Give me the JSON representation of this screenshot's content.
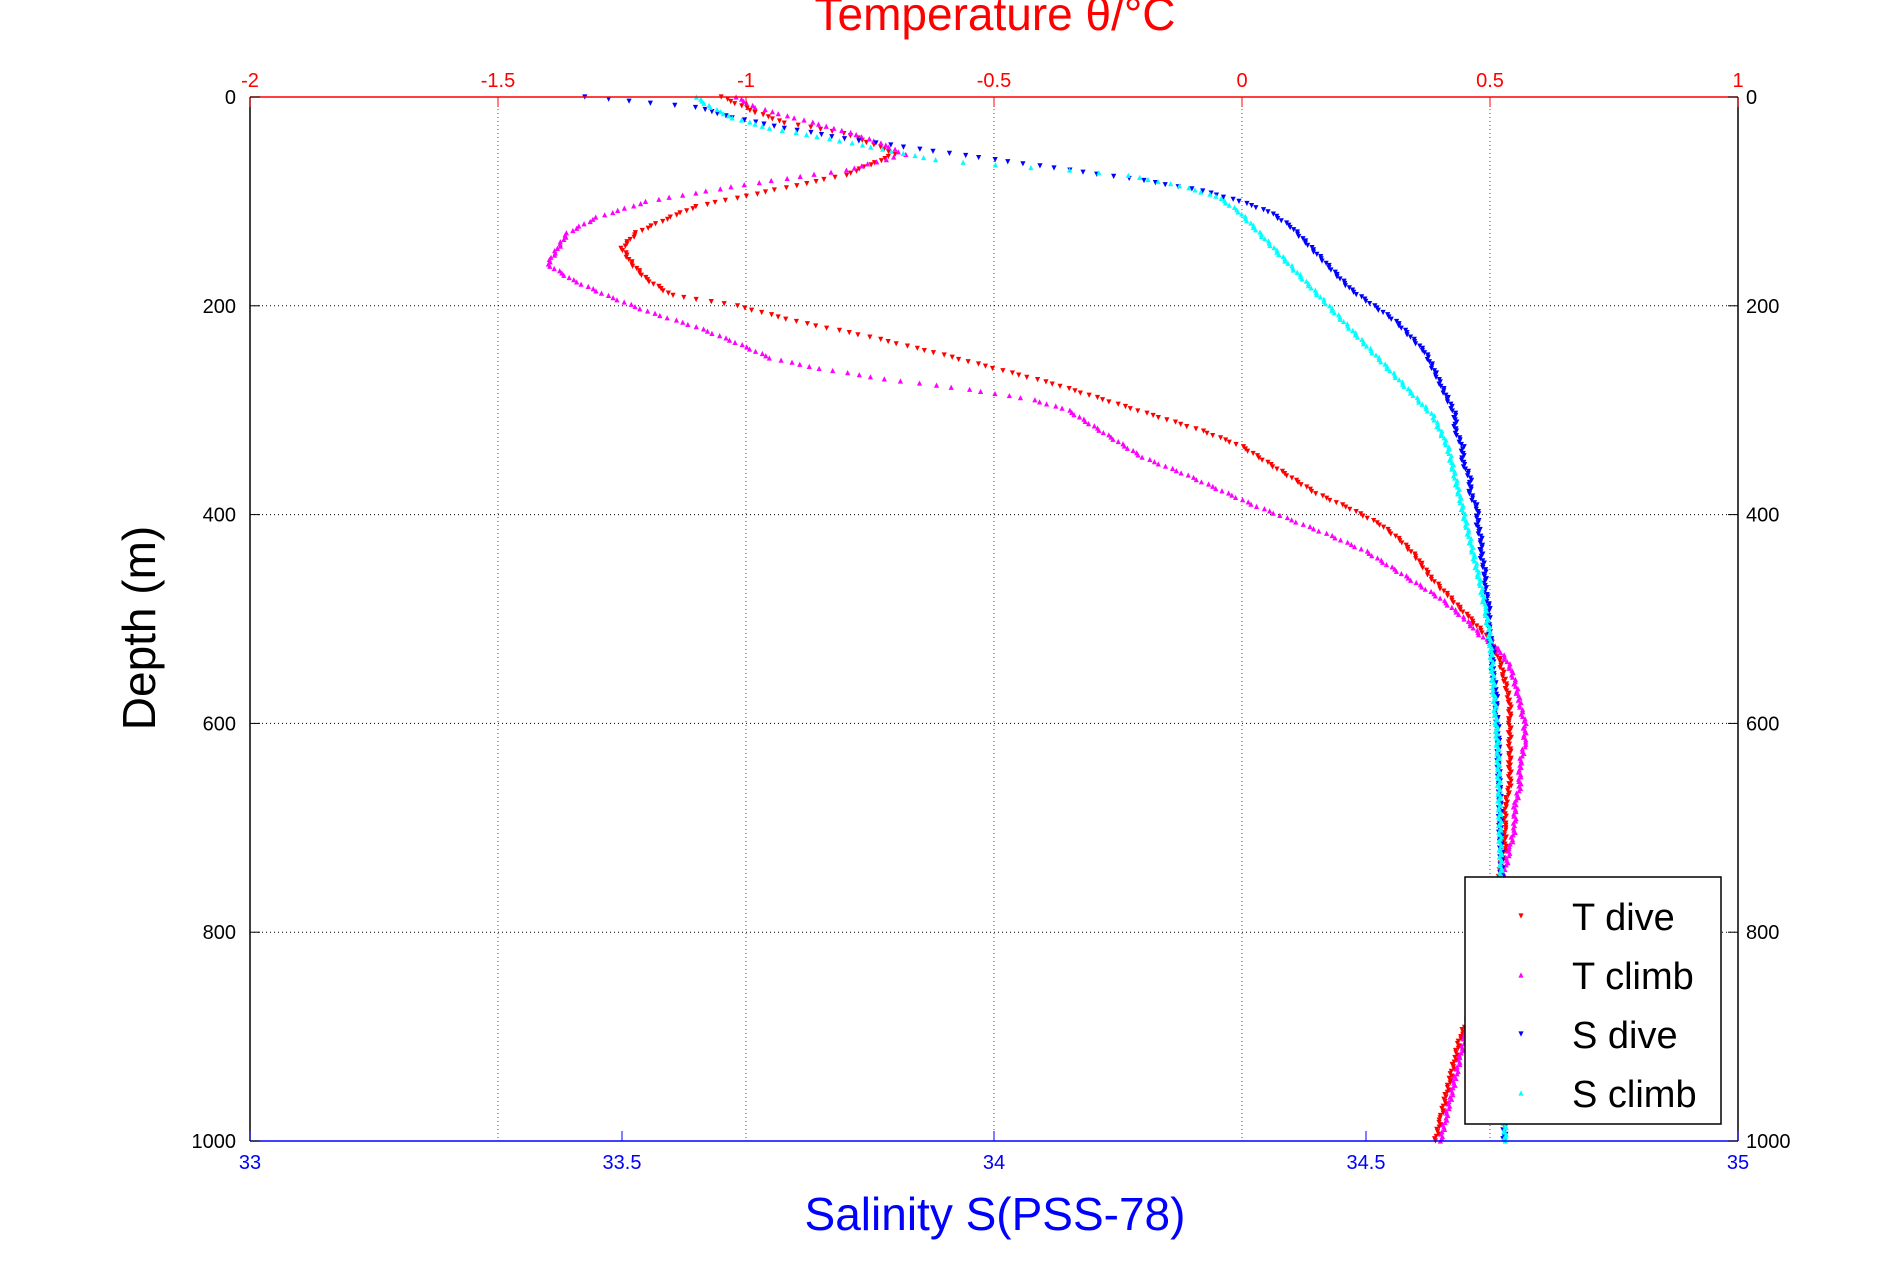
{
  "chart_data": {
    "type": "scatter",
    "title": "Temperature θ/°C",
    "xlabel": "Salinity S(PSS-78)",
    "ylabel": "Depth (m)",
    "top_axis": {
      "label": "Temperature θ/°C",
      "range": [
        -2,
        1
      ],
      "ticks": [
        "-2",
        "-1.5",
        "-1",
        "-0.5",
        "0",
        "0.5",
        "1"
      ],
      "color": "#ff0000"
    },
    "bottom_axis": {
      "label": "Salinity S(PSS-78)",
      "range": [
        33,
        35
      ],
      "ticks": [
        "33",
        "33.5",
        "34",
        "34.5",
        "35"
      ],
      "color": "#0000ff"
    },
    "y_axis": {
      "range": [
        0,
        1000
      ],
      "reversed": true,
      "ticks": [
        "0",
        "200",
        "400",
        "600",
        "800",
        "1000"
      ]
    },
    "grid": true,
    "legend": {
      "placement": "bottom-right"
    },
    "series": [
      {
        "name": "T dive",
        "axis": "top",
        "color": "#ff0000",
        "marker": "triangle-down",
        "points": [
          [
            -1.05,
            0
          ],
          [
            -0.98,
            15
          ],
          [
            -0.92,
            25
          ],
          [
            -0.8,
            35
          ],
          [
            -0.72,
            50
          ],
          [
            -0.7,
            55
          ],
          [
            -0.75,
            65
          ],
          [
            -0.8,
            75
          ],
          [
            -0.9,
            85
          ],
          [
            -1.0,
            95
          ],
          [
            -1.1,
            105
          ],
          [
            -1.15,
            115
          ],
          [
            -1.22,
            130
          ],
          [
            -1.25,
            145
          ],
          [
            -1.23,
            160
          ],
          [
            -1.2,
            175
          ],
          [
            -1.15,
            190
          ],
          [
            -1.02,
            200
          ],
          [
            -0.9,
            215
          ],
          [
            -0.75,
            230
          ],
          [
            -0.62,
            245
          ],
          [
            -0.5,
            260
          ],
          [
            -0.38,
            275
          ],
          [
            -0.28,
            290
          ],
          [
            -0.18,
            305
          ],
          [
            -0.08,
            320
          ],
          [
            0.0,
            335
          ],
          [
            0.05,
            350
          ],
          [
            0.1,
            365
          ],
          [
            0.15,
            380
          ],
          [
            0.22,
            395
          ],
          [
            0.28,
            410
          ],
          [
            0.32,
            425
          ],
          [
            0.35,
            440
          ],
          [
            0.38,
            460
          ],
          [
            0.42,
            480
          ],
          [
            0.46,
            500
          ],
          [
            0.5,
            520
          ],
          [
            0.52,
            540
          ],
          [
            0.53,
            560
          ],
          [
            0.54,
            580
          ],
          [
            0.54,
            600
          ],
          [
            0.54,
            620
          ],
          [
            0.54,
            640
          ],
          [
            0.54,
            660
          ],
          [
            0.53,
            680
          ],
          [
            0.53,
            700
          ],
          [
            0.53,
            720
          ],
          [
            0.52,
            740
          ],
          [
            0.52,
            760
          ],
          [
            0.51,
            780
          ],
          [
            0.5,
            800
          ],
          [
            0.49,
            820
          ],
          [
            0.48,
            840
          ],
          [
            0.47,
            860
          ],
          [
            0.46,
            880
          ],
          [
            0.44,
            900
          ],
          [
            0.43,
            920
          ],
          [
            0.42,
            940
          ],
          [
            0.41,
            960
          ],
          [
            0.4,
            980
          ],
          [
            0.39,
            1000
          ]
        ]
      },
      {
        "name": "T climb",
        "axis": "top",
        "color": "#ff00ff",
        "marker": "triangle-up",
        "points": [
          [
            -1.02,
            0
          ],
          [
            -0.98,
            10
          ],
          [
            -0.9,
            20
          ],
          [
            -0.82,
            30
          ],
          [
            -0.75,
            40
          ],
          [
            -0.7,
            50
          ],
          [
            -0.68,
            55
          ],
          [
            -0.72,
            60
          ],
          [
            -0.8,
            70
          ],
          [
            -0.95,
            80
          ],
          [
            -1.08,
            90
          ],
          [
            -1.2,
            100
          ],
          [
            -1.3,
            115
          ],
          [
            -1.36,
            130
          ],
          [
            -1.38,
            145
          ],
          [
            -1.4,
            160
          ],
          [
            -1.35,
            175
          ],
          [
            -1.28,
            190
          ],
          [
            -1.2,
            205
          ],
          [
            -1.1,
            220
          ],
          [
            -1.02,
            235
          ],
          [
            -0.95,
            250
          ],
          [
            -0.85,
            260
          ],
          [
            -0.72,
            270
          ],
          [
            -0.55,
            280
          ],
          [
            -0.42,
            290
          ],
          [
            -0.35,
            300
          ],
          [
            -0.3,
            315
          ],
          [
            -0.25,
            330
          ],
          [
            -0.2,
            345
          ],
          [
            -0.12,
            360
          ],
          [
            -0.05,
            375
          ],
          [
            0.02,
            390
          ],
          [
            0.1,
            405
          ],
          [
            0.18,
            420
          ],
          [
            0.25,
            435
          ],
          [
            0.3,
            450
          ],
          [
            0.35,
            465
          ],
          [
            0.4,
            480
          ],
          [
            0.45,
            500
          ],
          [
            0.48,
            515
          ],
          [
            0.52,
            530
          ],
          [
            0.54,
            545
          ],
          [
            0.55,
            560
          ],
          [
            0.56,
            580
          ],
          [
            0.57,
            600
          ],
          [
            0.57,
            620
          ],
          [
            0.56,
            640
          ],
          [
            0.56,
            660
          ],
          [
            0.55,
            680
          ],
          [
            0.55,
            700
          ],
          [
            0.54,
            720
          ],
          [
            0.53,
            740
          ],
          [
            0.52,
            760
          ],
          [
            0.51,
            780
          ],
          [
            0.5,
            800
          ],
          [
            0.49,
            820
          ],
          [
            0.48,
            840
          ],
          [
            0.47,
            860
          ],
          [
            0.46,
            880
          ],
          [
            0.45,
            900
          ],
          [
            0.44,
            920
          ],
          [
            0.43,
            940
          ],
          [
            0.42,
            960
          ],
          [
            0.41,
            980
          ],
          [
            0.4,
            1000
          ]
        ]
      },
      {
        "name": "S dive",
        "axis": "bottom",
        "color": "#0000ff",
        "marker": "triangle-down",
        "points": [
          [
            33.45,
            0
          ],
          [
            33.6,
            10
          ],
          [
            33.65,
            20
          ],
          [
            33.72,
            30
          ],
          [
            33.8,
            40
          ],
          [
            33.9,
            50
          ],
          [
            34.0,
            60
          ],
          [
            34.1,
            70
          ],
          [
            34.2,
            80
          ],
          [
            34.28,
            90
          ],
          [
            34.33,
            100
          ],
          [
            34.37,
            110
          ],
          [
            34.4,
            125
          ],
          [
            34.42,
            140
          ],
          [
            34.44,
            155
          ],
          [
            34.46,
            170
          ],
          [
            34.48,
            185
          ],
          [
            34.51,
            200
          ],
          [
            34.54,
            215
          ],
          [
            34.56,
            230
          ],
          [
            34.58,
            245
          ],
          [
            34.59,
            260
          ],
          [
            34.6,
            275
          ],
          [
            34.61,
            290
          ],
          [
            34.62,
            305
          ],
          [
            34.62,
            320
          ],
          [
            34.63,
            335
          ],
          [
            34.63,
            350
          ],
          [
            34.64,
            365
          ],
          [
            34.64,
            380
          ],
          [
            34.65,
            395
          ],
          [
            34.65,
            410
          ],
          [
            34.655,
            425
          ],
          [
            34.655,
            440
          ],
          [
            34.66,
            455
          ],
          [
            34.66,
            470
          ],
          [
            34.665,
            490
          ],
          [
            34.665,
            510
          ],
          [
            34.67,
            530
          ],
          [
            34.67,
            550
          ],
          [
            34.675,
            570
          ],
          [
            34.675,
            590
          ],
          [
            34.678,
            610
          ],
          [
            34.678,
            640
          ],
          [
            34.68,
            670
          ],
          [
            34.68,
            700
          ],
          [
            34.682,
            730
          ],
          [
            34.682,
            760
          ],
          [
            34.683,
            790
          ],
          [
            34.683,
            820
          ],
          [
            34.684,
            850
          ],
          [
            34.684,
            880
          ],
          [
            34.685,
            910
          ],
          [
            34.685,
            940
          ],
          [
            34.686,
            970
          ],
          [
            34.686,
            1000
          ]
        ]
      },
      {
        "name": "S climb",
        "axis": "bottom",
        "color": "#00ffff",
        "marker": "triangle-up",
        "points": [
          [
            33.6,
            0
          ],
          [
            33.62,
            10
          ],
          [
            33.65,
            20
          ],
          [
            33.7,
            30
          ],
          [
            33.78,
            40
          ],
          [
            33.85,
            50
          ],
          [
            33.92,
            60
          ],
          [
            34.0,
            65
          ],
          [
            34.1,
            70
          ],
          [
            34.18,
            75
          ],
          [
            34.25,
            85
          ],
          [
            34.3,
            95
          ],
          [
            34.33,
            110
          ],
          [
            34.35,
            125
          ],
          [
            34.37,
            140
          ],
          [
            34.39,
            155
          ],
          [
            34.41,
            170
          ],
          [
            34.43,
            185
          ],
          [
            34.45,
            200
          ],
          [
            34.47,
            215
          ],
          [
            34.49,
            230
          ],
          [
            34.51,
            245
          ],
          [
            34.53,
            260
          ],
          [
            34.55,
            275
          ],
          [
            34.57,
            290
          ],
          [
            34.59,
            305
          ],
          [
            34.6,
            320
          ],
          [
            34.61,
            335
          ],
          [
            34.615,
            350
          ],
          [
            34.62,
            365
          ],
          [
            34.625,
            380
          ],
          [
            34.63,
            395
          ],
          [
            34.635,
            410
          ],
          [
            34.64,
            425
          ],
          [
            34.645,
            440
          ],
          [
            34.65,
            455
          ],
          [
            34.655,
            470
          ],
          [
            34.66,
            490
          ],
          [
            34.665,
            510
          ],
          [
            34.668,
            530
          ],
          [
            34.67,
            550
          ],
          [
            34.672,
            570
          ],
          [
            34.674,
            590
          ],
          [
            34.676,
            610
          ],
          [
            34.678,
            640
          ],
          [
            34.679,
            670
          ],
          [
            34.68,
            700
          ],
          [
            34.681,
            730
          ],
          [
            34.682,
            760
          ],
          [
            34.683,
            790
          ],
          [
            34.683,
            820
          ],
          [
            34.684,
            850
          ],
          [
            34.685,
            880
          ],
          [
            34.685,
            910
          ],
          [
            34.686,
            940
          ],
          [
            34.686,
            970
          ],
          [
            34.687,
            1000
          ]
        ]
      }
    ]
  }
}
